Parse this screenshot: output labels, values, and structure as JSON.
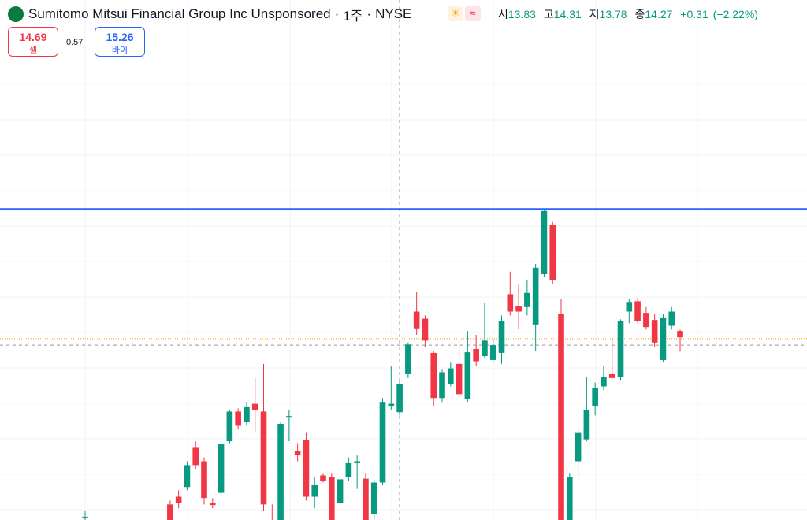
{
  "header": {
    "title": "Sumitomo Mitsui Financial Group Inc Unsponsored",
    "interval": "1주",
    "exchange": "NYSE",
    "open_label": "시",
    "open": 13.83,
    "high_label": "고",
    "high": 14.31,
    "low_label": "저",
    "low": 13.78,
    "close_label": "종",
    "close": 14.27,
    "change": "+0.31",
    "change_pct": "(+2.22%)"
  },
  "trade": {
    "sell_price": 14.69,
    "sell_label": "셀",
    "spread": 0.57,
    "buy_price": 15.26,
    "buy_label": "바이"
  },
  "chart_data": {
    "type": "candlestick",
    "ylim": [
      12.16,
      20.22
    ],
    "up_color": "#089981",
    "down_color": "#f23645",
    "open": [
      12.2,
      null,
      null,
      null,
      null,
      null,
      null,
      null,
      null,
      null,
      12.4,
      12.52,
      12.67,
      13.29,
      13.07,
      12.42,
      12.58,
      13.38,
      13.84,
      13.68,
      13.96,
      13.84,
      12.14,
      12.05,
      13.76,
      13.23,
      13.4,
      12.52,
      12.85,
      12.83,
      12.42,
      12.82,
      13.04,
      12.8,
      12.25,
      12.74,
      13.93,
      13.83,
      14.42,
      15.39,
      15.28,
      14.75,
      14.05,
      14.27,
      14.58,
      14.03,
      14.81,
      14.7,
      14.64,
      14.75,
      15.66,
      15.48,
      15.46,
      15.19,
      15.97,
      16.74,
      15.36,
      11.98,
      13.07,
      13.41,
      13.93,
      14.23,
      14.42,
      14.38,
      15.39,
      15.55,
      15.37,
      15.26,
      14.64,
      15.17,
      15.09
    ],
    "high": [
      12.3,
      null,
      null,
      null,
      null,
      null,
      null,
      null,
      null,
      null,
      12.46,
      12.62,
      13.07,
      13.38,
      13.13,
      12.5,
      13.38,
      13.87,
      13.89,
      13.99,
      14.36,
      14.58,
      12.4,
      13.68,
      13.87,
      13.35,
      13.52,
      12.83,
      12.89,
      12.89,
      12.83,
      13.13,
      13.16,
      12.89,
      12.79,
      14.05,
      14.54,
      14.31,
      14.91,
      15.7,
      15.33,
      14.78,
      14.5,
      14.6,
      14.97,
      15.09,
      15.03,
      15.52,
      14.97,
      15.33,
      16.01,
      15.82,
      15.88,
      16.13,
      16.98,
      16.78,
      15.58,
      12.89,
      13.59,
      14.38,
      14.29,
      14.54,
      14.97,
      15.27,
      15.58,
      15.6,
      15.46,
      15.36,
      15.36,
      15.46,
      15.11
    ],
    "low": [
      12.12,
      null,
      null,
      null,
      null,
      null,
      null,
      null,
      null,
      null,
      12.02,
      12.34,
      12.62,
      12.95,
      12.4,
      12.34,
      12.52,
      13.35,
      13.56,
      13.62,
      13.52,
      12.3,
      11.85,
      11.98,
      13.38,
      13.07,
      12.46,
      12.34,
      12.74,
      12.02,
      12.4,
      12.77,
      12.64,
      12.0,
      12.16,
      12.71,
      13.87,
      13.78,
      14.36,
      15.03,
      14.84,
      13.93,
      13.99,
      14.23,
      14.05,
      13.99,
      14.54,
      14.66,
      14.6,
      14.58,
      15.33,
      15.11,
      15.33,
      14.78,
      15.92,
      15.82,
      11.85,
      11.9,
      12.83,
      13.38,
      13.78,
      14.17,
      14.33,
      14.33,
      15.21,
      15.21,
      15.11,
      14.84,
      14.6,
      15.11,
      14.77
    ],
    "close": [
      12.21,
      null,
      null,
      null,
      null,
      null,
      null,
      null,
      null,
      null,
      12.1,
      12.42,
      13.01,
      13.01,
      12.5,
      12.39,
      13.34,
      13.84,
      13.62,
      13.92,
      13.87,
      12.4,
      11.95,
      13.65,
      13.77,
      13.16,
      12.52,
      12.71,
      12.77,
      12.1,
      12.79,
      13.04,
      13.07,
      12.08,
      12.74,
      13.99,
      13.96,
      14.27,
      14.88,
      15.13,
      14.94,
      14.05,
      14.45,
      14.51,
      14.11,
      14.76,
      14.62,
      14.94,
      14.87,
      15.24,
      15.39,
      15.39,
      15.68,
      16.07,
      16.95,
      15.88,
      11.95,
      12.82,
      13.52,
      13.87,
      14.21,
      14.38,
      14.36,
      15.24,
      15.54,
      15.24,
      15.15,
      14.91,
      15.3,
      15.39,
      14.99
    ],
    "lines": [
      {
        "value": 16.98,
        "color": "#2962ff",
        "style": "solid"
      },
      {
        "value": 14.97,
        "color": "#ff9800",
        "style": "dotted"
      },
      {
        "value": 14.87,
        "color": "#9598a1",
        "style": "dashed"
      }
    ]
  }
}
